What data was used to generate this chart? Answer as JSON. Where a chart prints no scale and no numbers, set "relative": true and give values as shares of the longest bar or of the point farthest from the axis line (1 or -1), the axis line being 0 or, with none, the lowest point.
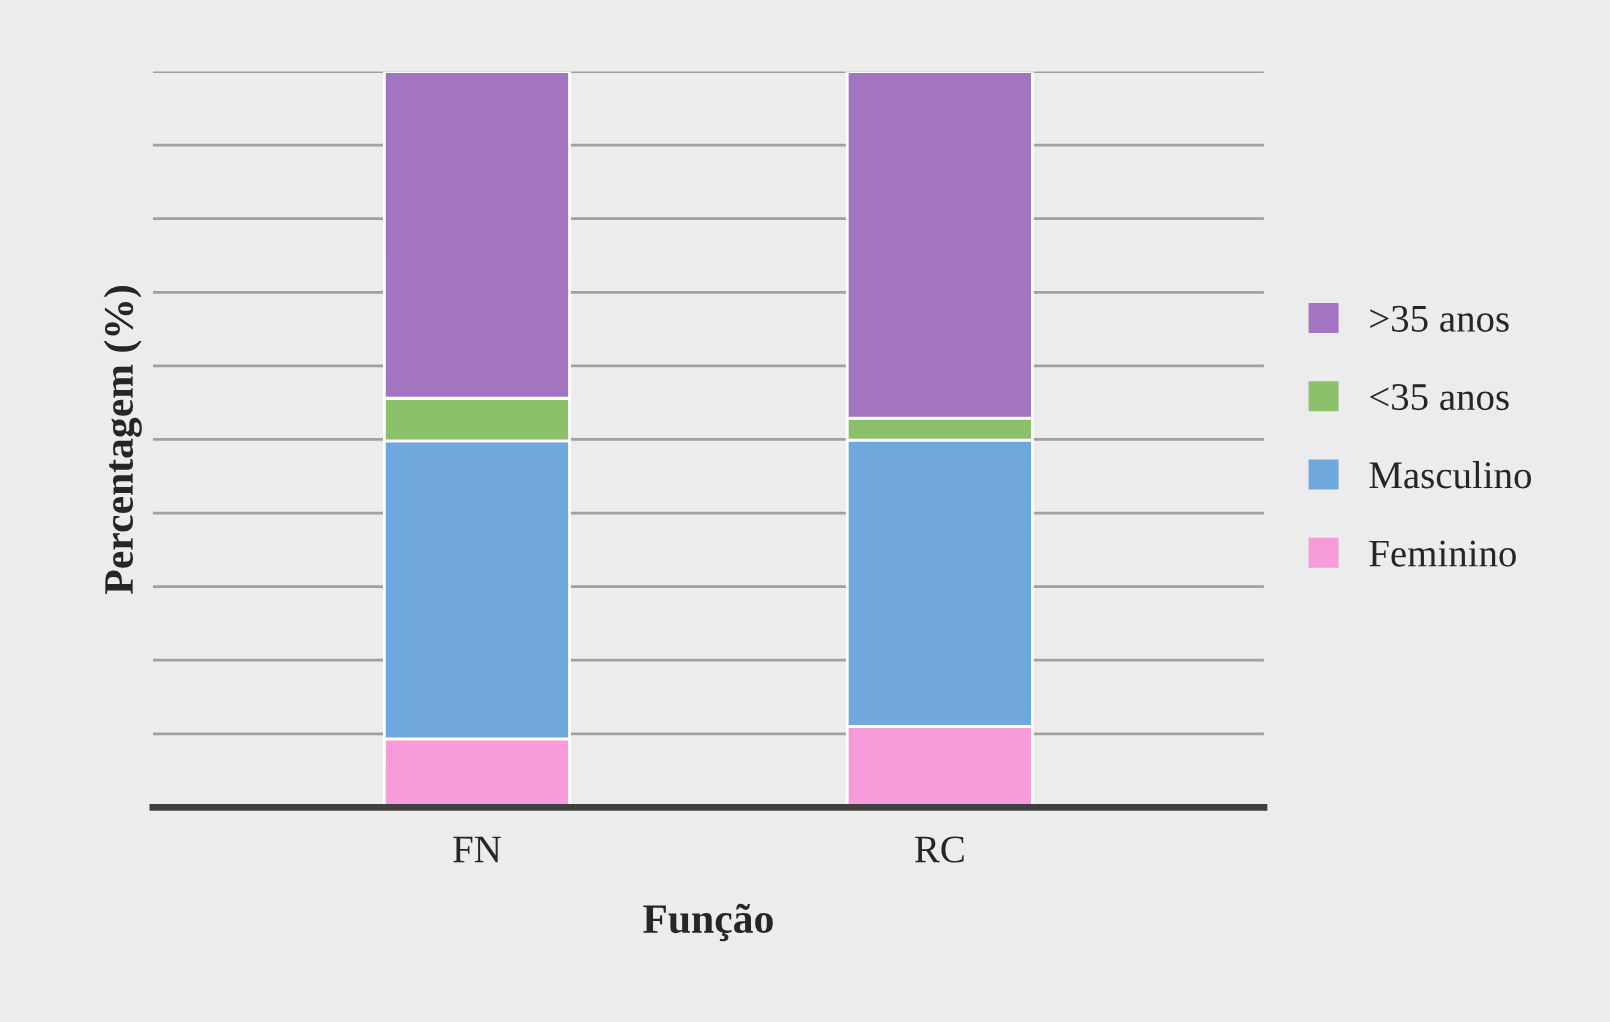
{
  "chart_data": {
    "type": "bar",
    "stacked": true,
    "relative": true,
    "xlabel": "Função",
    "ylabel": "Percentagem (%)",
    "categories": [
      "FN",
      "RC"
    ],
    "series": [
      {
        "name": "Feminino",
        "color": "#f89bd9",
        "values": [
          0.093,
          0.11
        ]
      },
      {
        "name": "Masculino",
        "color": "#6fa8dc",
        "values": [
          0.405,
          0.389
        ]
      },
      {
        "name": "<35 anos",
        "color": "#8dc06b",
        "values": [
          0.058,
          0.03
        ]
      },
      {
        "name": ">35 anos",
        "color": "#a274c2",
        "values": [
          0.444,
          0.471
        ]
      }
    ],
    "grid": "y",
    "legend": "right"
  }
}
